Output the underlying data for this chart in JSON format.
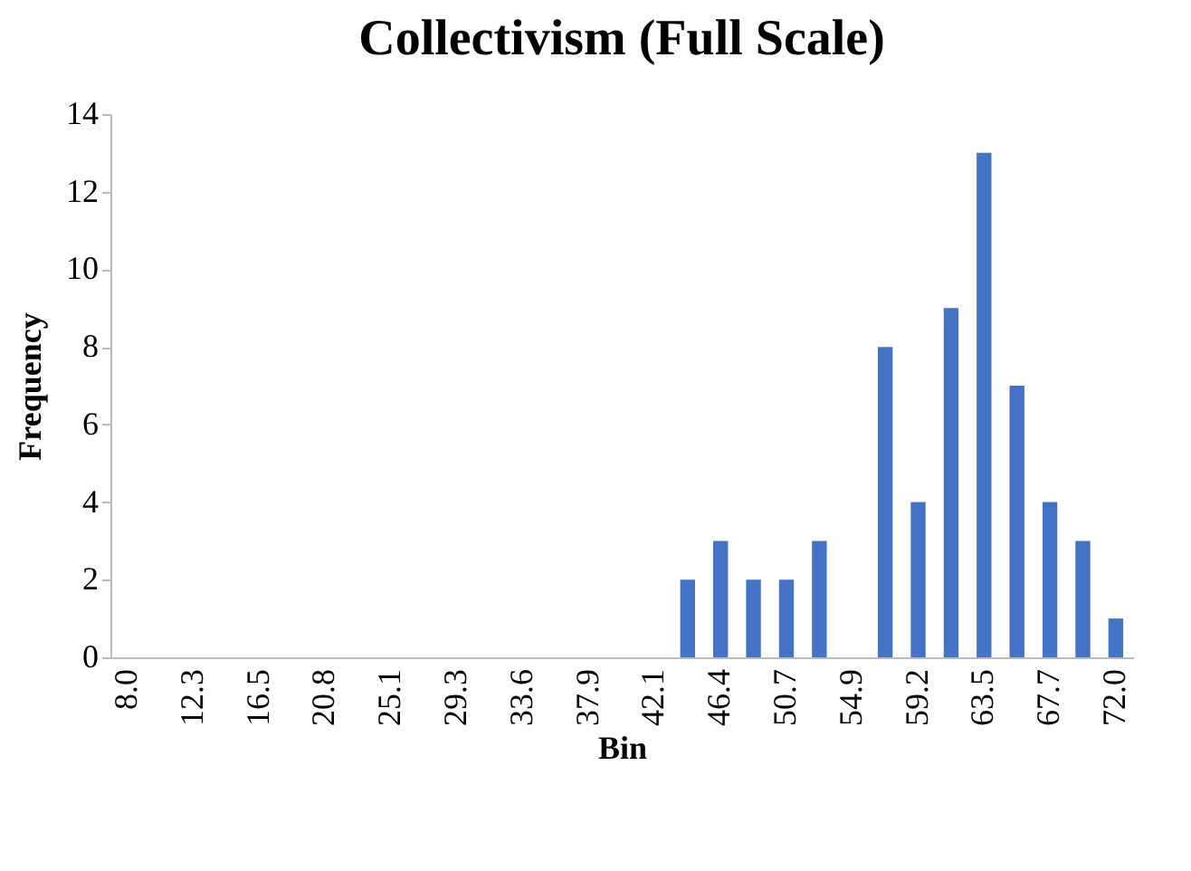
{
  "chart_data": {
    "type": "bar",
    "title": "Collectivism (Full Scale)",
    "xlabel": "Bin",
    "ylabel": "Frequency",
    "categories": [
      "8.0",
      null,
      "12.3",
      null,
      "16.5",
      null,
      "20.8",
      null,
      "25.1",
      null,
      "29.3",
      null,
      "33.6",
      null,
      "37.9",
      null,
      "42.1",
      null,
      "46.4",
      null,
      "50.7",
      null,
      "54.9",
      null,
      "59.2",
      null,
      "63.5",
      null,
      "67.7",
      null,
      "72.0"
    ],
    "values": [
      0,
      0,
      0,
      0,
      0,
      0,
      0,
      0,
      0,
      0,
      0,
      0,
      0,
      0,
      0,
      0,
      0,
      2,
      3,
      2,
      2,
      3,
      0,
      8,
      4,
      9,
      13,
      7,
      4,
      3,
      1
    ],
    "color": "#4472c4",
    "ylim": [
      0,
      14
    ],
    "yticks": [
      0,
      2,
      4,
      6,
      8,
      10,
      12,
      14
    ],
    "grid": false
  }
}
